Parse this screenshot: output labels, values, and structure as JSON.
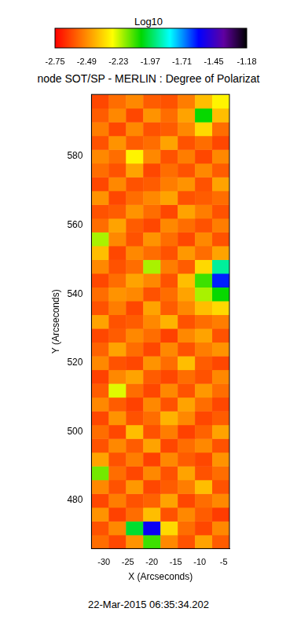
{
  "chart_data": {
    "type": "heatmap",
    "title": "node SOT/SP - MERLIN : Degree of Polarizat",
    "x_label": "X (Arcseconds)",
    "y_label": "Y (Arcseconds)",
    "annotations": [
      "22-Mar-2015 06:35:34.202"
    ],
    "xlim": [
      -32.6,
      -3.8
    ],
    "xticks": [
      -30,
      -25,
      -20,
      -15,
      -10,
      -5
    ],
    "ylim": [
      466,
      598
    ],
    "yticks": [
      480,
      500,
      520,
      540,
      560,
      580
    ],
    "grid": false,
    "x": [
      -30.8,
      -27.2,
      -23.6,
      -20.0,
      -16.4,
      -12.8,
      -9.2,
      -5.6
    ],
    "y": [
      468,
      472,
      476,
      480,
      484,
      488,
      492,
      496,
      500,
      504,
      508,
      512,
      516,
      520,
      524,
      528,
      532,
      536,
      540,
      544,
      548,
      552,
      556,
      560,
      564,
      568,
      572,
      576,
      580,
      584,
      588,
      592,
      596
    ],
    "z": [
      [
        -2.55,
        -2.62,
        -2.48,
        -2.1,
        -2.5,
        -2.6,
        -2.45,
        -2.58
      ],
      [
        -2.6,
        -2.5,
        -2.0,
        -1.55,
        -2.35,
        -2.55,
        -2.62,
        -2.5
      ],
      [
        -2.48,
        -2.63,
        -2.55,
        -2.4,
        -2.6,
        -2.5,
        -2.58,
        -2.64
      ],
      [
        -2.62,
        -2.52,
        -2.6,
        -2.57,
        -2.45,
        -2.62,
        -2.55,
        -2.5
      ],
      [
        -2.5,
        -2.6,
        -2.47,
        -2.62,
        -2.58,
        -2.52,
        -2.4,
        -2.6
      ],
      [
        -2.15,
        -2.55,
        -2.62,
        -2.5,
        -2.6,
        -2.45,
        -2.6,
        -2.55
      ],
      [
        -2.45,
        -2.6,
        -2.52,
        -2.63,
        -2.5,
        -2.58,
        -2.62,
        -2.48
      ],
      [
        -2.6,
        -2.5,
        -2.58,
        -2.45,
        -2.62,
        -2.55,
        -2.5,
        -2.6
      ],
      [
        -2.55,
        -2.62,
        -2.4,
        -2.6,
        -2.52,
        -2.63,
        -2.57,
        -2.45
      ],
      [
        -2.62,
        -2.48,
        -2.6,
        -2.55,
        -2.42,
        -2.5,
        -2.62,
        -2.58
      ],
      [
        -2.5,
        -2.58,
        -2.63,
        -2.5,
        -2.6,
        -2.45,
        -2.55,
        -2.62
      ],
      [
        -2.58,
        -2.25,
        -2.55,
        -2.62,
        -2.5,
        -2.6,
        -2.47,
        -2.55
      ],
      [
        -2.63,
        -2.5,
        -2.45,
        -2.58,
        -2.62,
        -2.55,
        -2.6,
        -2.5
      ],
      [
        -2.5,
        -2.6,
        -2.62,
        -2.48,
        -2.55,
        -2.4,
        -2.58,
        -2.62
      ],
      [
        -2.57,
        -2.45,
        -2.55,
        -2.62,
        -2.5,
        -2.6,
        -2.52,
        -2.48
      ],
      [
        -2.62,
        -2.58,
        -2.5,
        -2.55,
        -2.63,
        -2.5,
        -2.45,
        -2.6
      ],
      [
        -2.45,
        -2.6,
        -2.58,
        -2.5,
        -2.42,
        -2.6,
        -2.55,
        -2.52
      ],
      [
        -2.6,
        -2.52,
        -2.62,
        -2.45,
        -2.58,
        -2.5,
        -2.4,
        -2.35
      ],
      [
        -2.55,
        -2.48,
        -2.5,
        -2.6,
        -2.55,
        -2.45,
        -2.2,
        -2.05
      ],
      [
        -2.62,
        -2.55,
        -2.45,
        -2.5,
        -2.6,
        -2.4,
        -2.1,
        -1.6
      ],
      [
        -2.5,
        -2.6,
        -2.55,
        -2.2,
        -2.52,
        -2.58,
        -2.35,
        -1.9
      ],
      [
        -2.4,
        -2.62,
        -2.5,
        -2.55,
        -2.6,
        -2.47,
        -2.55,
        -2.45
      ],
      [
        -2.2,
        -2.5,
        -2.6,
        -2.48,
        -2.55,
        -2.62,
        -2.5,
        -2.6
      ],
      [
        -2.55,
        -2.45,
        -2.58,
        -2.62,
        -2.5,
        -2.55,
        -2.6,
        -2.52
      ],
      [
        -2.6,
        -2.58,
        -2.48,
        -2.55,
        -2.62,
        -2.45,
        -2.52,
        -2.6
      ],
      [
        -2.48,
        -2.62,
        -2.55,
        -2.5,
        -2.45,
        -2.6,
        -2.58,
        -2.55
      ],
      [
        -2.62,
        -2.5,
        -2.6,
        -2.58,
        -2.52,
        -2.48,
        -2.6,
        -2.45
      ],
      [
        -2.55,
        -2.6,
        -2.45,
        -2.62,
        -2.55,
        -2.6,
        -2.5,
        -2.58
      ],
      [
        -2.5,
        -2.55,
        -2.3,
        -2.5,
        -2.6,
        -2.52,
        -2.62,
        -2.5
      ],
      [
        -2.6,
        -2.48,
        -2.58,
        -2.55,
        -2.45,
        -2.6,
        -2.55,
        -2.62
      ],
      [
        -2.52,
        -2.62,
        -2.5,
        -2.6,
        -2.58,
        -2.5,
        -2.35,
        -2.55
      ],
      [
        -2.58,
        -2.5,
        -2.62,
        -2.48,
        -2.55,
        -2.45,
        -2.05,
        -2.4
      ],
      [
        -2.62,
        -2.55,
        -2.5,
        -2.58,
        -2.6,
        -2.52,
        -2.4,
        -2.3
      ]
    ],
    "colorbar": {
      "label": "Log10",
      "range": [
        -2.75,
        -1.18
      ],
      "ticks": [
        -2.75,
        -2.49,
        -2.23,
        -1.97,
        -1.71,
        -1.45,
        -1.18
      ]
    }
  }
}
